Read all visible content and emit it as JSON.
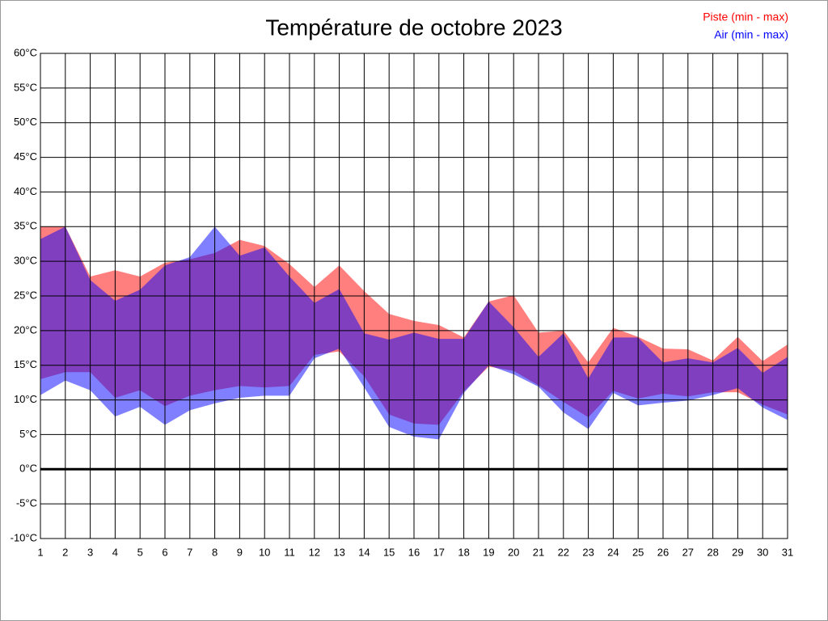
{
  "chart_data": {
    "type": "range-area",
    "title": "Température de octobre 2023",
    "x": [
      1,
      2,
      3,
      4,
      5,
      6,
      7,
      8,
      9,
      10,
      11,
      12,
      13,
      14,
      15,
      16,
      17,
      18,
      19,
      20,
      21,
      22,
      23,
      24,
      25,
      26,
      27,
      28,
      29,
      30,
      31
    ],
    "xlim": [
      1,
      31
    ],
    "ylim": [
      -10,
      60
    ],
    "yticks": [
      {
        "value": -10,
        "label": "-10°C"
      },
      {
        "value": -5,
        "label": "-5°C"
      },
      {
        "value": 0,
        "label": "0°C"
      },
      {
        "value": 5,
        "label": "5°C"
      },
      {
        "value": 10,
        "label": "10°C"
      },
      {
        "value": 15,
        "label": "15°C"
      },
      {
        "value": 20,
        "label": "20°C"
      },
      {
        "value": 25,
        "label": "25°C"
      },
      {
        "value": 30,
        "label": "30°C"
      },
      {
        "value": 35,
        "label": "35°C"
      },
      {
        "value": 40,
        "label": "40°C"
      },
      {
        "value": 45,
        "label": "45°C"
      },
      {
        "value": 50,
        "label": "50°C"
      },
      {
        "value": 55,
        "label": "55°C"
      },
      {
        "value": 60,
        "label": "60°C"
      }
    ],
    "grid": true,
    "zero_line": true,
    "opacity": 0.5,
    "legend": "top-right",
    "series": [
      {
        "name": "Piste (min - max)",
        "color": "#ff0000",
        "min": [
          13.0,
          14.0,
          14.0,
          10.3,
          11.4,
          9.1,
          10.6,
          11.4,
          12.0,
          11.8,
          12.0,
          16.5,
          17.0,
          13.4,
          7.9,
          6.6,
          6.4,
          11.2,
          14.8,
          14.2,
          12.1,
          9.7,
          7.5,
          11.3,
          10.2,
          10.9,
          10.5,
          11.1,
          11.1,
          9.3,
          7.9
        ],
        "max": [
          35.0,
          35.0,
          27.8,
          28.7,
          27.8,
          29.8,
          30.3,
          31.2,
          33.1,
          32.2,
          29.6,
          26.3,
          29.4,
          25.7,
          22.4,
          21.4,
          20.8,
          19.0,
          24.2,
          25.1,
          19.7,
          20.0,
          15.4,
          20.4,
          19.1,
          17.4,
          17.3,
          15.7,
          19.1,
          15.6,
          18.0
        ]
      },
      {
        "name": "Air (min - max)",
        "color": "#0000ff",
        "min": [
          10.7,
          12.8,
          11.4,
          7.6,
          9.0,
          6.4,
          8.5,
          9.5,
          10.3,
          10.6,
          10.6,
          16.0,
          17.4,
          11.8,
          6.1,
          4.7,
          4.3,
          11.0,
          15.0,
          13.7,
          11.9,
          8.2,
          5.8,
          11.0,
          9.2,
          9.6,
          9.9,
          10.7,
          11.7,
          8.9,
          7.1
        ],
        "max": [
          33.2,
          35.0,
          27.3,
          24.3,
          25.9,
          29.4,
          30.6,
          35.0,
          30.8,
          32.0,
          27.8,
          24.0,
          26.0,
          19.6,
          18.7,
          19.7,
          18.8,
          18.8,
          24.2,
          20.5,
          16.2,
          19.6,
          13.1,
          19.0,
          19.0,
          15.4,
          16.0,
          15.4,
          17.5,
          13.9,
          16.2
        ]
      }
    ]
  }
}
